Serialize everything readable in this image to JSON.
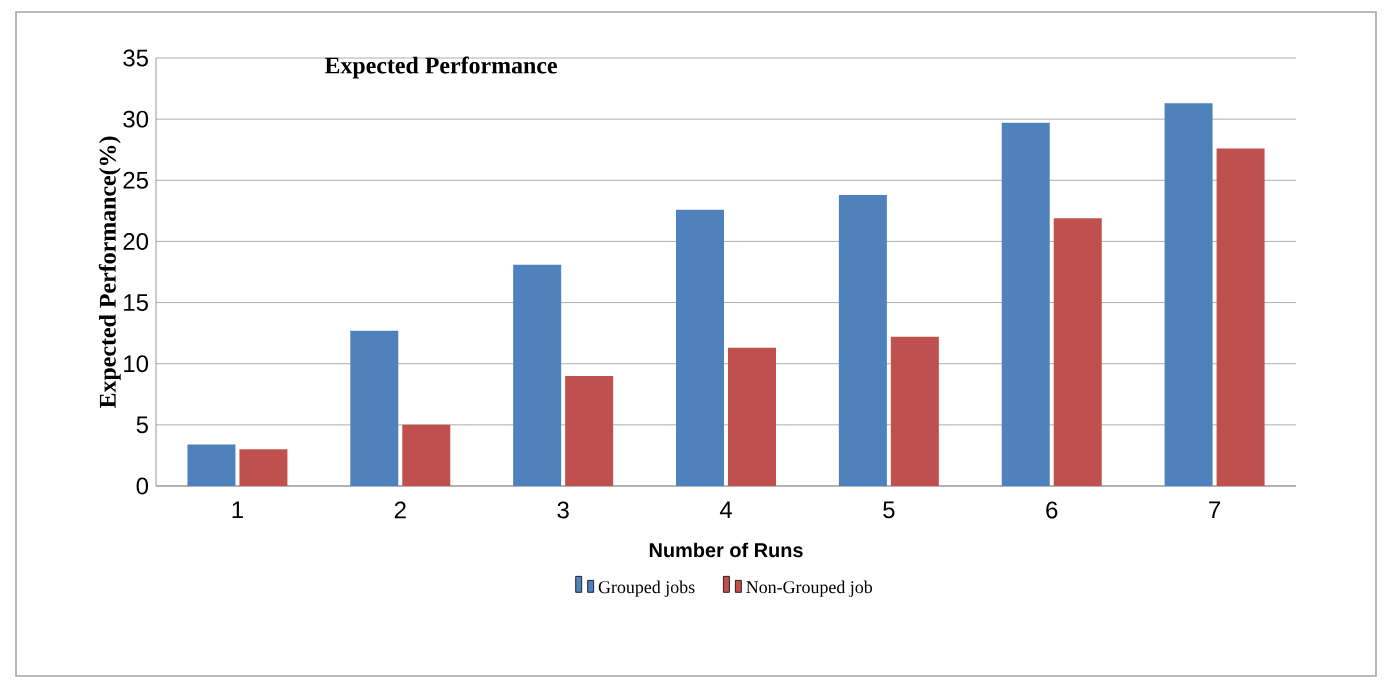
{
  "chart_data": {
    "type": "bar",
    "title": "Expected Performance",
    "xlabel": "Number of Runs",
    "ylabel": "Expected Performance(%)",
    "categories": [
      "1",
      "2",
      "3",
      "4",
      "5",
      "6",
      "7"
    ],
    "series": [
      {
        "name": "Grouped  jobs",
        "color": "#4f81bd",
        "values": [
          3.4,
          12.7,
          18.1,
          22.6,
          23.8,
          29.7,
          31.3
        ]
      },
      {
        "name": "Non-Grouped job",
        "color": "#c0504d",
        "values": [
          3.0,
          5.0,
          9.0,
          11.3,
          12.2,
          21.9,
          27.6
        ]
      }
    ],
    "ylim": [
      0,
      35
    ],
    "yticks": [
      0,
      5,
      10,
      15,
      20,
      25,
      30,
      35
    ],
    "grid": "y",
    "legend": "bottom"
  }
}
